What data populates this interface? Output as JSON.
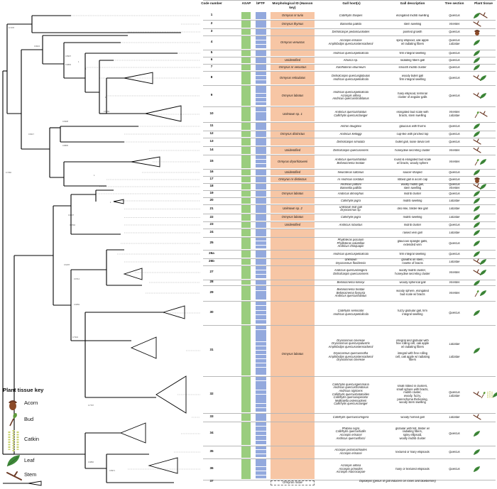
{
  "headers": {
    "code_number": "Code number",
    "asap": "ASAP",
    "bptp": "bPTP",
    "morphological_id": "Morphological ID (Hanson key)",
    "gall_hosts": "Gall host(s)",
    "gall_description": "Gall description",
    "tree_section": "Tree section",
    "plant_tissue": "Plant tissue"
  },
  "colors": {
    "asap": "#9acd7e",
    "bptp": "#93a9dd",
    "morph_fill": "#f7c6a5",
    "leaf": "#3f8a3a",
    "stem": "#6b3a26",
    "acorn": "#7a3e22"
  },
  "tree_values": [
    "0.7478",
    "0.9024",
    "0.8907",
    "0.9893",
    "1",
    "1",
    "1",
    "0.9669",
    "0.6017",
    "0.9938",
    "0.8805",
    "1",
    "0.7366",
    "1",
    "0.9337",
    "0.7602",
    "0.6478",
    "0.9714",
    "0.9659",
    "0.7934",
    "0.7797",
    "0.9866",
    "0.8971"
  ],
  "plant_tissue_key": {
    "title": "Plant tissue key",
    "items": [
      {
        "label": "Acorn",
        "icon": "acorn-icon"
      },
      {
        "label": "Bud",
        "icon": "bud-icon"
      },
      {
        "label": "Catkin",
        "icon": "catkin-icon"
      },
      {
        "label": "Leaf",
        "icon": "leaf-icon"
      },
      {
        "label": "Stem",
        "icon": "stem-icon"
      }
    ]
  },
  "morph_groups": [
    {
      "label": "Ormyrus nr turio",
      "rows": "1"
    },
    {
      "label": "Ormyrus thymus",
      "rows": "2"
    },
    {
      "label": "Ormyrus venustus",
      "rows": "3-5"
    },
    {
      "label": "Unidentified",
      "rows": "6"
    },
    {
      "label": "Ormyrus nr venustus",
      "rows": "7"
    },
    {
      "label": "Ormyrus reticulatus",
      "rows": "8"
    },
    {
      "label": "Ormyrus labotus",
      "rows": "9"
    },
    {
      "label": "Unknown sp. 1",
      "rows": "10"
    },
    {
      "label": "Ormyrus distinctus",
      "rows": "11-13"
    },
    {
      "label": "Unidentified",
      "rows": "14"
    },
    {
      "label": "Ormyrus dryorhizoxeni",
      "rows": "15"
    },
    {
      "label": "Unidentified",
      "rows": "16"
    },
    {
      "label": "Ormyrus nr distinctus",
      "rows": "17"
    },
    {
      "label": "Ormyrus labotus",
      "rows": "18-20"
    },
    {
      "label": "Unknown sp. 2",
      "rows": "21"
    },
    {
      "label": "Ormyrus labotus",
      "rows": "22"
    },
    {
      "label": "Unidentified",
      "rows": "23"
    },
    {
      "label": "Ormyrus labotus",
      "rows": "24-36"
    },
    {
      "label": "Ormyrus rosae",
      "rows": "37"
    }
  ],
  "rows": [
    {
      "code": "1",
      "hosts": "Callirhytis flavipes",
      "desc": "elongated midrib swelling",
      "section": "Quercus",
      "tissue": "leaf, stem"
    },
    {
      "code": "2",
      "hosts": "Bassettia pallida",
      "desc": "stem swelling",
      "section": "Virentes",
      "tissue": "stem"
    },
    {
      "code": "3",
      "hosts": "Disholcaspis peduncuoloides",
      "desc": "pointed growth",
      "section": "Quercus",
      "tissue": "acorn"
    },
    {
      "code": "4",
      "hosts": "Acraspis erinacei\nAmphibolips quercusostensackenii",
      "desc": "spiny ellipsoid, oak apple\nw/ radiating fibers",
      "section": "Quercus\nLobatae",
      "tissue": "leaf"
    },
    {
      "code": "5",
      "hosts": "Andricus quercuspetiolicola",
      "desc": "firm integral swelling",
      "section": "Quercus",
      "tissue": "leaf"
    },
    {
      "code": "6",
      "hosts": "Atrusca sp.",
      "desc": "radiating fibers gall",
      "section": "Quercus",
      "tissue": "leaf"
    },
    {
      "code": "7",
      "hosts": "Xanthoteras eburneum",
      "desc": "smooth midrib cluster",
      "section": "Quercus",
      "tissue": "leaf"
    },
    {
      "code": "8",
      "hosts": "Disholcaspis quercusglobulus\nAndricus quercuspetiolicola",
      "desc": "woody bullet gall\nfirm integral swelling",
      "section": "Quercus",
      "tissue": "stem, leaf"
    },
    {
      "code": "9",
      "hosts": "Andricus quercuspetiolicola\nAcraspis villosa\nAndricus quercusstrobilanus",
      "desc": "hairy ellipsoid, terminal\ncluster of angular galls",
      "section": "Quercus",
      "tissue": "stem, leaf"
    },
    {
      "code": "10",
      "hosts": "Andricus quercusfoliatus\nCallirhytis quercusclaviger",
      "desc": "elongated bud scale with\nbracts, stem swelling",
      "section": "Virentes\nLobatae",
      "tissue": "bud, stem"
    },
    {
      "code": "11",
      "hosts": "Antron douglasii",
      "desc": "glaucous with thorns",
      "section": "Quercus",
      "tissue": "leaf"
    },
    {
      "code": "12",
      "hosts": "Andricus kelloggi",
      "desc": "cup-like with pinched top",
      "section": "Quercus",
      "tissue": "leaf"
    },
    {
      "code": "13",
      "hosts": "Disholcaspis simulata",
      "desc": "bullet gall, loose larval cell",
      "section": "Quercus",
      "tissue": "stem"
    },
    {
      "code": "14",
      "hosts": "Disholcaspis quercusvirens",
      "desc": "honeydew secreting cluster",
      "section": "Virentes",
      "tissue": "stem"
    },
    {
      "code": "15",
      "hosts": "Andricus quercusfoliatus\nBelonocnema treatae",
      "desc": "round & elongated bud scale\nw/ bracts, woody sphere",
      "section": "Virentes",
      "tissue": "bud, leaf"
    },
    {
      "code": "16",
      "hosts": "Neuroterus saltarius",
      "desc": "saucer-shaped",
      "section": "Quercus",
      "tissue": "leaf"
    },
    {
      "code": "17",
      "hosts": "nr Andricus costatus",
      "desc": "ribbed gall in acorn cap",
      "section": "Quercus",
      "tissue": "acorn"
    },
    {
      "code": "18",
      "hosts": "Andricus pattoni\nBassettia pallida",
      "desc": "woolly midrib gall,\nstem swelling",
      "section": "Quercus\nVirentes",
      "tissue": "stem, leaf"
    },
    {
      "code": "19",
      "hosts": "Andricus dimorphus",
      "desc": "midrib cluster",
      "section": "Quercus",
      "tissue": "leaf"
    },
    {
      "code": "20",
      "hosts": "Callirhytis pigra",
      "desc": "midrib swelling",
      "section": "Lobatae",
      "tissue": "leaf"
    },
    {
      "code": "21",
      "hosts": "unknown leaf gall\nDryocosmus sp.",
      "desc": "disc-like, blister-like gall",
      "section": "Lobatae",
      "tissue": "leaf"
    },
    {
      "code": "22",
      "hosts": "Callirhytis pigra",
      "desc": "midrib swelling",
      "section": "Lobatae",
      "tissue": "leaf"
    },
    {
      "code": "23",
      "hosts": "Andricus robustus",
      "desc": "midrib cluster",
      "section": "Quercus",
      "tissue": "leaf"
    },
    {
      "code": "24",
      "hosts": "",
      "desc": "raised vein gall",
      "section": "Lobatae",
      "tissue": "leaf"
    },
    {
      "code": "25",
      "hosts": "Phylloteras poculum\nPhylloteras volutellae\nAndricus chinquapin",
      "desc": "glaucous spangle galls,\nextended vein",
      "section": "Quercus",
      "tissue": "leaf"
    },
    {
      "code": "26a",
      "hosts": "Andricus quercuspetiolicola",
      "desc": "firm integral swelling",
      "section": "Quercus",
      "tissue": "leaf"
    },
    {
      "code": "26b",
      "hosts": "Unknown\nDryocosmus floridensis",
      "desc": "growths on stem,\nrosette of bracts",
      "section": "Lobatae",
      "tissue": "stem, leaf"
    },
    {
      "code": "27",
      "hosts": "Andricus quercuslanigera\nDisholcaspis quercusvirens",
      "desc": "woolly midrib cluster,\nhoneydew secreting cluster",
      "section": "Virentes",
      "tissue": "stem, leaf"
    },
    {
      "code": "28",
      "hosts": "Belonocnema kinseyi",
      "desc": "woody spherical gall",
      "section": "Virentes",
      "tissue": "leaf"
    },
    {
      "code": "29",
      "hosts": "Belonocnema treatae\nBelonocnema fossoria\nAndricus quercusfoliatus",
      "desc": "woody sphere, elongated\nbud scale w/ bracts",
      "section": "Virentes",
      "tissue": "bud, leaf"
    },
    {
      "code": "30",
      "hosts": "Callirhytis seminator\nAndricus quercuspetiolicola",
      "desc": "fuzzy globular gall, firm\nintegral swelling",
      "section": "Quercus",
      "tissue": "leaf"
    },
    {
      "code": "31",
      "hosts": "Dryocosmus cinereae\nDryocosmus quercuspalustris\nAmphibolips quercusostensackenii\n\nDryocosmus quercusnotha\nAmphibolips quercusostensackenii\nDryocosmus cinereae",
      "desc": "integral and globular with\nfree rolling cell, oak apple\nw/ radiating fibers\n\nintegral with free rolling\ncell, oak apple w/ radiating\nfibers",
      "section": "Lobatae\n\n\n\nLobatae",
      "tissue": "leaf"
    },
    {
      "code": "32",
      "hosts": "Callirhytis quercusgemmaria\nAndricus quercusfrondosus\nAndricus nigricens\nCallirhytis quercusbatatoides\nCallirhytis quercusoperator\nMelikaiella ostensackeni\nCallirhytis quercusclaviger",
      "desc": "small ribbed in clusters,\nsmall sphere with bracts,\nmidrib cluster,\nwoody, fuzzy,\nparenchyma thickening,\nwoody stem swelling",
      "section": "Quercus\nLobatae",
      "tissue": "stem, bud, catkin, leaf"
    },
    {
      "code": "33",
      "hosts": "Callirhytis quercuscornigera",
      "desc": "woody horned gall",
      "section": "Lobatae",
      "tissue": "stem"
    },
    {
      "code": "34",
      "hosts": "Philonix nigra\nCallirhytis quercusfutilis\nAcraspis erinacei\nAndricus quercusflocci",
      "desc": "globular with felt, blister w/\nradiating fibers,\nspiny ellipsoid,\nwoolly midrib cluster",
      "section": "Quercus",
      "tissue": "leaf"
    },
    {
      "code": "35",
      "hosts": "Acraspis pezomachoides\nAcraspis erinacei",
      "desc": "textured or hairy ellipsoids",
      "section": "Quercus",
      "tissue": "leaf"
    },
    {
      "code": "36",
      "hosts": "Acraspis villosa\nAcraspis prinoides\nAcraspis macrocarpae",
      "desc": "hairy or textured ellipsoids",
      "section": "Quercus",
      "tissue": "leaf"
    },
    {
      "code": "37",
      "hosts": "Diplolepis  (genus of gall inducers on roses and blueberries)",
      "desc": "",
      "section": "",
      "tissue": ""
    }
  ]
}
